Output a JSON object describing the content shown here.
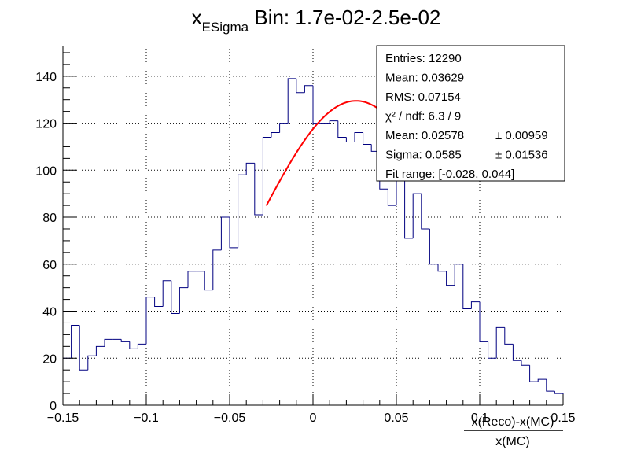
{
  "chart_data": {
    "type": "histogram",
    "title": {
      "main": "x",
      "subscript": "ESigma",
      "rest": " Bin: 1.7e-02-2.5e-02"
    },
    "xlabel": {
      "numerator": "x(Reco)-x(MC)",
      "denominator": "x(MC)"
    },
    "ylabel": "",
    "xlim": [
      -0.15,
      0.15
    ],
    "ylim": [
      0,
      153
    ],
    "grid": true,
    "x_ticks": [
      -0.15,
      -0.1,
      -0.05,
      0,
      0.05,
      0.1,
      0.15
    ],
    "x_tick_labels": [
      "−0.15",
      "−0.1",
      "−0.05",
      "0",
      "0.05",
      "0.1",
      "0.15"
    ],
    "y_ticks": [
      0,
      20,
      40,
      60,
      80,
      100,
      120,
      140
    ],
    "y_tick_labels": [
      "0",
      "20",
      "40",
      "60",
      "80",
      "100",
      "120",
      "140"
    ],
    "bin_edges_range": [
      -0.15,
      0.15
    ],
    "bin_width": 0.005,
    "counts": [
      20,
      34,
      15,
      21,
      25,
      28,
      28,
      27,
      24,
      26,
      46,
      42,
      53,
      39,
      50,
      57,
      57,
      49,
      66,
      80,
      67,
      98,
      103,
      81,
      114,
      116,
      120,
      139,
      133,
      136,
      120,
      120,
      121,
      114,
      112,
      116,
      111,
      108,
      92,
      85,
      104,
      71,
      90,
      75,
      60,
      57,
      51,
      60,
      41,
      44,
      27,
      20,
      33,
      26,
      19,
      17,
      10,
      11,
      6,
      5
    ],
    "histogram_color": "#000080",
    "fit": {
      "name": "gaus",
      "mean": 0.02578,
      "sigma": 0.0585,
      "constant": 129.5,
      "range": [
        -0.028,
        0.044
      ],
      "color": "#ff0000"
    },
    "stats_box": {
      "placement": "top-right",
      "rows": [
        {
          "label": "Entries: 12290",
          "value": ""
        },
        {
          "label": "Mean: 0.03629",
          "value": ""
        },
        {
          "label": "RMS: 0.07154",
          "value": ""
        },
        {
          "label": "χ² / ndf: 6.3 / 9",
          "value": ""
        },
        {
          "label": "Mean: 0.02578",
          "value": "± 0.00959"
        },
        {
          "label": "Sigma: 0.0585",
          "value": "± 0.01536"
        },
        {
          "label": "Fit range: [-0.028, 0.044]",
          "value": ""
        }
      ]
    }
  }
}
